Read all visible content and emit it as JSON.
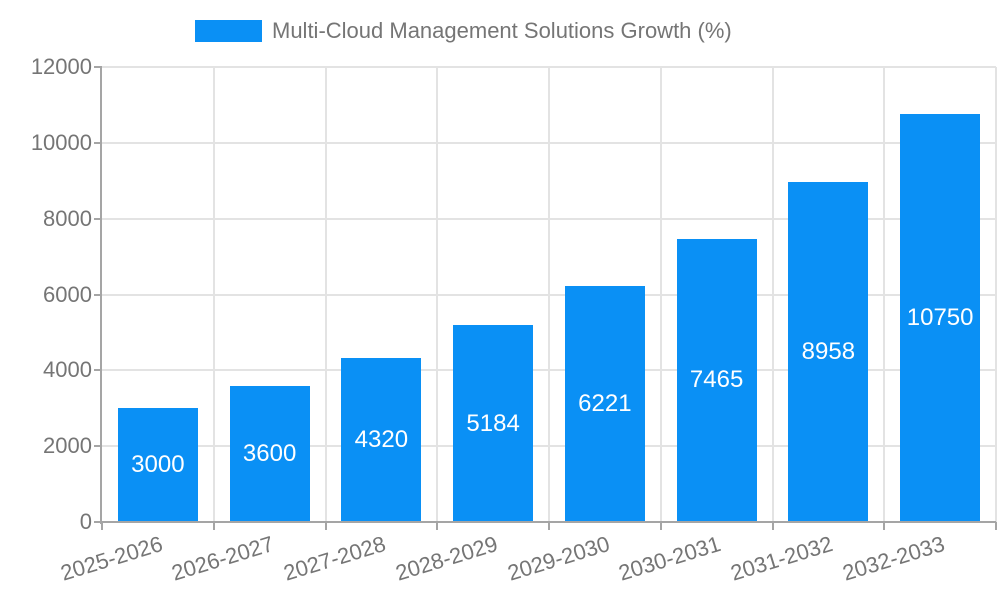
{
  "legend": {
    "label": "Multi-Cloud Management Solutions Growth (%)"
  },
  "chart_data": {
    "type": "bar",
    "title": "Multi-Cloud Management Solutions Growth (%)",
    "categories": [
      "2025-2026",
      "2026-2027",
      "2027-2028",
      "2028-2029",
      "2029-2030",
      "2030-2031",
      "2031-2032",
      "2032-2033"
    ],
    "values": [
      3000,
      3600,
      4320,
      5184,
      6221,
      7465,
      8958,
      10750
    ],
    "bar_labels": [
      "3000",
      "3600",
      "4320",
      "5184",
      "6221",
      "7465",
      "8958",
      "10750"
    ],
    "xlabel": "",
    "ylabel": "",
    "ylim": [
      0,
      12000
    ],
    "yticks": [
      0,
      2000,
      4000,
      6000,
      8000,
      10000,
      12000
    ],
    "grid": true,
    "legend_position": "top",
    "x_tick_rotation_deg": -17,
    "colors": {
      "bar": "#0a90f5",
      "bar_label_text": "#ffffff",
      "axis_text": "#757575",
      "axis_line": "#a5a5a5",
      "gridline": "#e3e3e3",
      "background": "#ffffff"
    }
  }
}
